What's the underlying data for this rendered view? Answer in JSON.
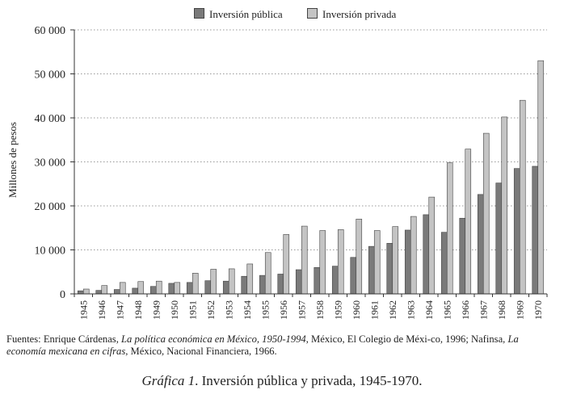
{
  "chart_data": {
    "type": "bar",
    "title": "",
    "xlabel": "",
    "ylabel": "Millones de pesos",
    "ylim": [
      0,
      60000
    ],
    "yticks": [
      0,
      10000,
      20000,
      30000,
      40000,
      50000,
      60000
    ],
    "ytick_labels": [
      "0",
      "10 000",
      "20 000",
      "30 000",
      "40 000",
      "50 000",
      "60 000"
    ],
    "grid": "horizontal dotted",
    "legend_position": "top-center",
    "categories": [
      "1945",
      "1946",
      "1947",
      "1948",
      "1949",
      "1950",
      "1951",
      "1952",
      "1953",
      "1954",
      "1955",
      "1956",
      "1957",
      "1958",
      "1959",
      "1960",
      "1961",
      "1962",
      "1963",
      "1964",
      "1965",
      "1966",
      "1967",
      "1968",
      "1969",
      "1970"
    ],
    "series": [
      {
        "name": "Inversión pública",
        "color": "#7a7a7a",
        "values": [
          700,
          800,
          1000,
          1300,
          1700,
          2400,
          2600,
          3000,
          2900,
          4000,
          4200,
          4500,
          5500,
          6000,
          6300,
          8300,
          10800,
          11500,
          14500,
          18000,
          14000,
          17200,
          22600,
          25200,
          28500,
          29000
        ]
      },
      {
        "name": "Inversión privada",
        "color": "#c4c4c4",
        "values": [
          1100,
          1900,
          2600,
          2800,
          2900,
          2600,
          4700,
          5600,
          5700,
          6800,
          9400,
          13500,
          15400,
          14400,
          14600,
          17000,
          14400,
          15300,
          17600,
          22000,
          29800,
          32900,
          36500,
          40200,
          44000,
          53000
        ]
      }
    ]
  },
  "sources": {
    "prefix": "Fuentes: Enrique Cárdenas, ",
    "book1": "La política económica en México, 1950-1994",
    "mid": ", México, El Colegio de Méxi-co, 1996; Nafinsa, ",
    "book2": "La economía mexicana en cifras",
    "suffix": ", México, Nacional Financiera, 1966."
  },
  "caption": {
    "label": "Gráfica 1",
    "text": ". Inversión pública y privada, 1945-1970."
  }
}
